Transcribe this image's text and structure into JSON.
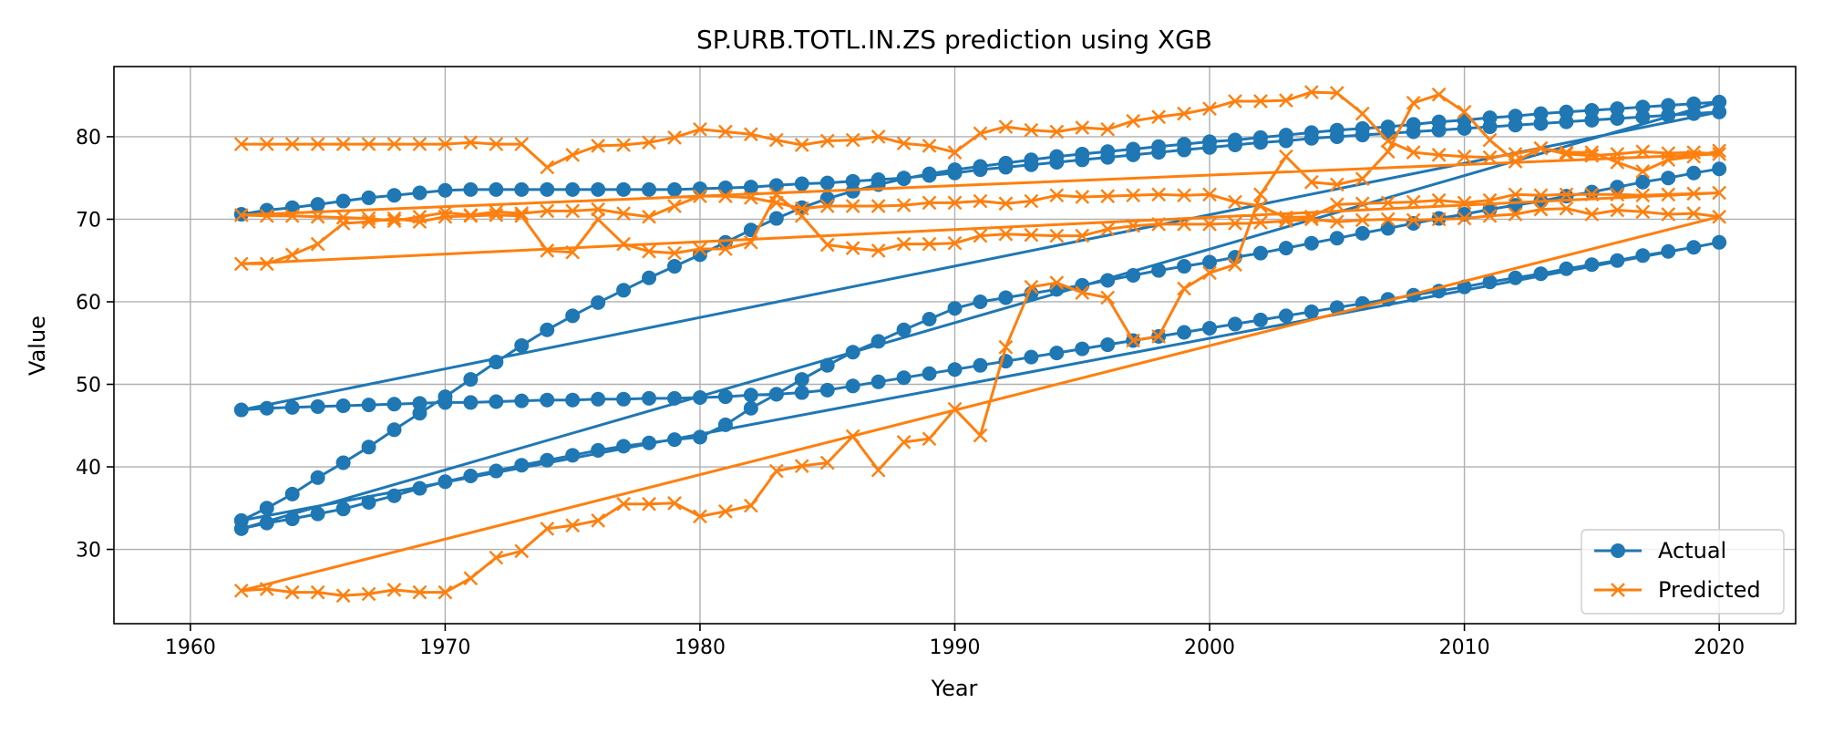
{
  "chart_data": {
    "type": "line",
    "title": "SP.URB.TOTL.IN.ZS prediction using XGB",
    "xlabel": "Year",
    "ylabel": "Value",
    "xlim": [
      1957,
      2023
    ],
    "ylim": [
      21,
      88.5
    ],
    "xticks": [
      1960,
      1970,
      1980,
      1990,
      2000,
      2010,
      2020
    ],
    "yticks": [
      30,
      40,
      50,
      60,
      70,
      80
    ],
    "grid": true,
    "legend_position": "lower right",
    "legend": [
      "Actual",
      "Predicted"
    ],
    "colors": {
      "Actual": "#1f77b4",
      "Predicted": "#ff7f0e"
    },
    "markers": {
      "Actual": "circle",
      "Predicted": "x"
    },
    "x": [
      1962,
      1963,
      1964,
      1965,
      1966,
      1967,
      1968,
      1969,
      1970,
      1971,
      1972,
      1973,
      1974,
      1975,
      1976,
      1977,
      1978,
      1979,
      1980,
      1981,
      1982,
      1983,
      1984,
      1985,
      1986,
      1987,
      1988,
      1989,
      1990,
      1991,
      1992,
      1993,
      1994,
      1995,
      1996,
      1997,
      1998,
      1999,
      2000,
      2001,
      2002,
      2003,
      2004,
      2005,
      2006,
      2007,
      2008,
      2009,
      2010,
      2011,
      2012,
      2013,
      2014,
      2015,
      2016,
      2017,
      2018,
      2019,
      2020
    ],
    "series": [
      {
        "name": "Actual",
        "values": [
          70.6,
          71.1,
          71.4,
          71.8,
          72.2,
          72.6,
          72.9,
          73.2,
          73.5,
          73.6,
          73.6,
          73.6,
          73.6,
          73.6,
          73.6,
          73.6,
          73.6,
          73.6,
          73.7,
          73.8,
          73.9,
          74.1,
          74.3,
          74.4,
          74.6,
          74.8,
          75.0,
          75.3,
          75.6,
          76.0,
          76.3,
          76.6,
          76.9,
          77.2,
          77.5,
          77.8,
          78.1,
          78.4,
          78.7,
          79.0,
          79.3,
          79.5,
          79.8,
          80.0,
          80.2,
          80.4,
          80.6,
          80.8,
          81.0,
          81.2,
          81.4,
          81.6,
          81.8,
          82.0,
          82.2,
          82.4,
          82.6,
          82.8,
          83.0
        ]
      },
      {
        "name": "Actual",
        "values": [
          46.9,
          47.1,
          47.2,
          47.3,
          47.4,
          47.5,
          47.6,
          47.7,
          47.8,
          47.8,
          47.9,
          48.0,
          48.1,
          48.1,
          48.2,
          48.2,
          48.3,
          48.3,
          48.4,
          48.5,
          48.7,
          48.8,
          49.0,
          49.3,
          49.8,
          50.3,
          50.8,
          51.3,
          51.8,
          52.3,
          52.8,
          53.3,
          53.8,
          54.3,
          54.8,
          55.3,
          55.8,
          56.3,
          56.8,
          57.3,
          57.8,
          58.3,
          58.8,
          59.3,
          59.8,
          60.3,
          60.8,
          61.3,
          61.8,
          62.4,
          62.9,
          63.4,
          64.0,
          64.5,
          65.0,
          65.6,
          66.1,
          66.6,
          67.2
        ]
      },
      {
        "name": "Actual",
        "values": [
          33.5,
          35.0,
          36.7,
          38.7,
          40.5,
          42.4,
          44.5,
          46.5,
          48.5,
          50.6,
          52.7,
          54.7,
          56.6,
          58.3,
          59.9,
          61.4,
          62.9,
          64.3,
          65.7,
          67.2,
          68.7,
          70.1,
          71.4,
          72.5,
          73.4,
          74.2,
          74.9,
          75.5,
          76.0,
          76.4,
          76.8,
          77.2,
          77.6,
          77.9,
          78.2,
          78.5,
          78.8,
          79.1,
          79.4,
          79.6,
          79.9,
          80.2,
          80.5,
          80.8,
          81.0,
          81.2,
          81.5,
          81.8,
          82.0,
          82.3,
          82.5,
          82.8,
          83.0,
          83.2,
          83.4,
          83.6,
          83.8,
          84.0,
          84.2
        ]
      },
      {
        "name": "Actual",
        "values": [
          32.5,
          33.2,
          33.7,
          34.3,
          34.9,
          35.7,
          36.5,
          37.4,
          38.2,
          38.9,
          39.5,
          40.2,
          40.8,
          41.4,
          42.0,
          42.5,
          42.9,
          43.3,
          43.6,
          45.1,
          47.1,
          48.8,
          50.6,
          52.3,
          53.9,
          55.2,
          56.6,
          57.9,
          59.2,
          60.0,
          60.5,
          61.0,
          61.5,
          62.0,
          62.6,
          63.2,
          63.8,
          64.3,
          64.8,
          65.4,
          65.9,
          66.5,
          67.1,
          67.7,
          68.3,
          68.9,
          69.5,
          70.1,
          70.6,
          71.2,
          71.7,
          72.2,
          72.8,
          73.3,
          73.9,
          74.5,
          75.0,
          75.6,
          76.1
        ]
      },
      {
        "name": "Predicted",
        "values": [
          79.1,
          79.1,
          79.1,
          79.1,
          79.1,
          79.1,
          79.1,
          79.1,
          79.1,
          79.3,
          79.1,
          79.1,
          76.3,
          77.8,
          78.9,
          79.0,
          79.3,
          79.9,
          80.9,
          80.6,
          80.3,
          79.6,
          79.0,
          79.5,
          79.6,
          80.0,
          79.2,
          78.9,
          78.1,
          80.4,
          81.2,
          80.8,
          80.6,
          81.1,
          80.9,
          81.9,
          82.4,
          82.8,
          83.4,
          84.3,
          84.3,
          84.4,
          85.4,
          85.3,
          82.8,
          79.5,
          78.1,
          77.8,
          77.6,
          77.5,
          77.9,
          78.6,
          77.9,
          77.7,
          77.9,
          78.2,
          78.0,
          78.1,
          77.9
        ]
      },
      {
        "name": "Predicted",
        "values": [
          70.5,
          70.4,
          70.4,
          70.3,
          70.2,
          70.1,
          69.8,
          70.3,
          70.8,
          70.5,
          70.9,
          70.7,
          71.0,
          71.0,
          71.2,
          70.7,
          70.3,
          71.6,
          72.8,
          72.8,
          72.6,
          72.0,
          71.3,
          71.6,
          71.6,
          71.6,
          71.7,
          72.0,
          72.0,
          72.2,
          71.9,
          72.2,
          72.9,
          72.7,
          72.8,
          72.9,
          73.0,
          72.9,
          73.0,
          72.1,
          71.6,
          70.2,
          70.3,
          71.8,
          71.9,
          72.0,
          72.1,
          72.3,
          72.0,
          72.3,
          73.0,
          72.9,
          73.0,
          73.0,
          73.0,
          72.9,
          73.0,
          73.1,
          73.2
        ]
      },
      {
        "name": "Predicted",
        "values": [
          64.6,
          64.6,
          65.7,
          67.0,
          69.5,
          69.7,
          70.1,
          69.7,
          70.3,
          70.4,
          70.5,
          70.4,
          66.2,
          66.0,
          70.0,
          67.0,
          66.1,
          65.9,
          66.4,
          66.4,
          67.2,
          73.0,
          70.4,
          66.9,
          66.5,
          66.2,
          67.0,
          67.0,
          67.1,
          68.0,
          68.2,
          68.1,
          68.0,
          68.0,
          68.8,
          69.2,
          69.4,
          69.4,
          69.4,
          69.5,
          69.6,
          69.8,
          70.0,
          69.7,
          69.9,
          70.0,
          69.9,
          70.0,
          70.1,
          70.4,
          70.6,
          71.2,
          71.3,
          70.6,
          71.1,
          70.9,
          70.6,
          70.7,
          70.3
        ]
      },
      {
        "name": "Predicted",
        "values": [
          25.0,
          25.2,
          24.8,
          24.8,
          24.4,
          24.6,
          25.1,
          24.8,
          24.8,
          26.5,
          29.0,
          29.8,
          32.5,
          32.9,
          33.5,
          35.5,
          35.5,
          35.6,
          34.0,
          34.6,
          35.3,
          39.5,
          40.1,
          40.5,
          43.7,
          39.6,
          43.0,
          43.4,
          47.0,
          43.8,
          54.5,
          61.8,
          62.3,
          61.1,
          60.5,
          55.3,
          55.8,
          61.6,
          63.5,
          64.5,
          73.0,
          77.6,
          74.5,
          74.2,
          74.9,
          78.2,
          84.1,
          85.1,
          83.0,
          79.6,
          77.0,
          78.6,
          78.1,
          78.1,
          76.9,
          75.8,
          77.2,
          77.6,
          78.3
        ]
      }
    ]
  }
}
